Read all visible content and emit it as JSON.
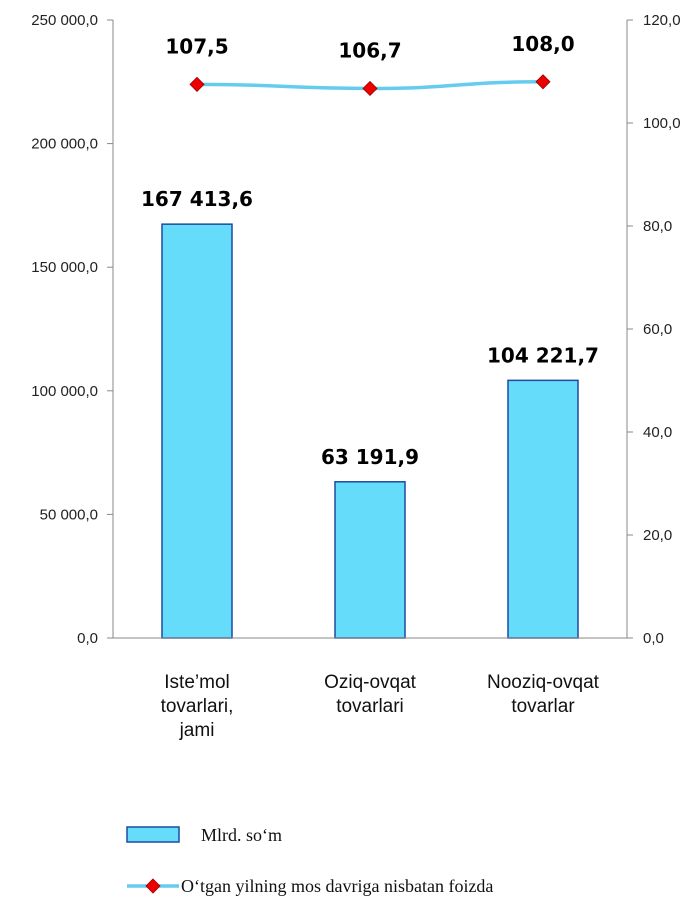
{
  "chart_data": {
    "type": "bar",
    "categories": [
      [
        "Iste’mol",
        "tovarlari,",
        "jami"
      ],
      [
        "Oziq-ovqat",
        "tovarlari"
      ],
      [
        "Nooziq-ovqat",
        "tovarlar"
      ]
    ],
    "series": [
      {
        "name": "Mlrd. so‘m",
        "type": "bar",
        "axis": "left",
        "values": [
          167413.6,
          63191.9,
          104221.7
        ],
        "labels": [
          "167 413,6",
          "63 191,9",
          "104 221,7"
        ],
        "color": "#66dcfb",
        "border_color": "#1f4aa0"
      },
      {
        "name": "O‘tgan yilning mos davriga nisbatan foizda",
        "type": "line",
        "axis": "right",
        "values": [
          107.5,
          106.7,
          108.0
        ],
        "labels": [
          "107,5",
          "106,7",
          "108,0"
        ],
        "color": "#66ccee",
        "marker_color": "#ee0000"
      }
    ],
    "left_axis": {
      "ylim": [
        0,
        250000
      ],
      "ticks": [
        0,
        50000,
        100000,
        150000,
        200000,
        250000
      ],
      "tick_labels": [
        "0,0",
        "50 000,0",
        "100 000,0",
        "150 000,0",
        "200 000,0",
        "250 000,0"
      ]
    },
    "right_axis": {
      "ylim": [
        0,
        120
      ],
      "ticks": [
        0,
        20,
        40,
        60,
        80,
        100,
        120
      ],
      "tick_labels": [
        "0,0",
        "20,0",
        "40,0",
        "60,0",
        "80,0",
        "100,0",
        "120,0"
      ]
    },
    "grid": false,
    "legend": {
      "position": "bottom",
      "entries": [
        "Mlrd. so‘m",
        "O‘tgan yilning mos davriga nisbatan foizda"
      ]
    }
  }
}
